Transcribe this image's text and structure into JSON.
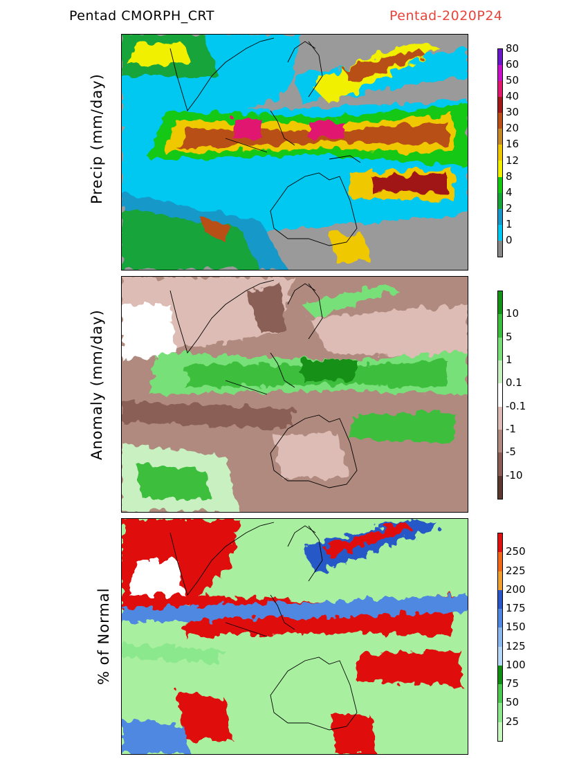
{
  "header": {
    "left_title": "Pentad CMORPH_CRT",
    "right_title": "Pentad-2020P24",
    "right_color": "#e8443a"
  },
  "panels": [
    {
      "ylabel": "Precip (mm/day)",
      "base_color": "#9a9a9a",
      "colorbar": {
        "colors": [
          "#888888",
          "#00c8f0",
          "#1898c8",
          "#16a43a",
          "#12c812",
          "#f0f000",
          "#f0c800",
          "#c88a28",
          "#b85018",
          "#a01818",
          "#e01870",
          "#c810c8",
          "#6818c8"
        ],
        "labels": [
          "0",
          "1",
          "2",
          "4",
          "8",
          "12",
          "16",
          "20",
          "30",
          "40",
          "50",
          "60",
          "80"
        ]
      }
    },
    {
      "ylabel": "Anomaly (mm/day)",
      "base_color": "#b08a7e",
      "colorbar": {
        "colors": [
          "#5a3830",
          "#8a5e55",
          "#b08a7e",
          "#dcbcb4",
          "#ffffff",
          "#c8f0c0",
          "#78e078",
          "#3cbe3c",
          "#149014"
        ],
        "labels": [
          "-10",
          "-5",
          "-1",
          "-0.1",
          "0.1",
          "1",
          "5",
          "10"
        ]
      }
    },
    {
      "ylabel": "% of Normal",
      "base_color": "#a8f0a0",
      "colorbar": {
        "colors": [
          "#c8f8c0",
          "#8ce88c",
          "#4ec84e",
          "#108c10",
          "#b8d8f8",
          "#8cb8f0",
          "#5088e0",
          "#2858c8",
          "#f0a030",
          "#f06818",
          "#e01010"
        ],
        "labels": [
          "25",
          "50",
          "75",
          "100",
          "125",
          "150",
          "175",
          "200",
          "225",
          "250"
        ]
      }
    }
  ]
}
